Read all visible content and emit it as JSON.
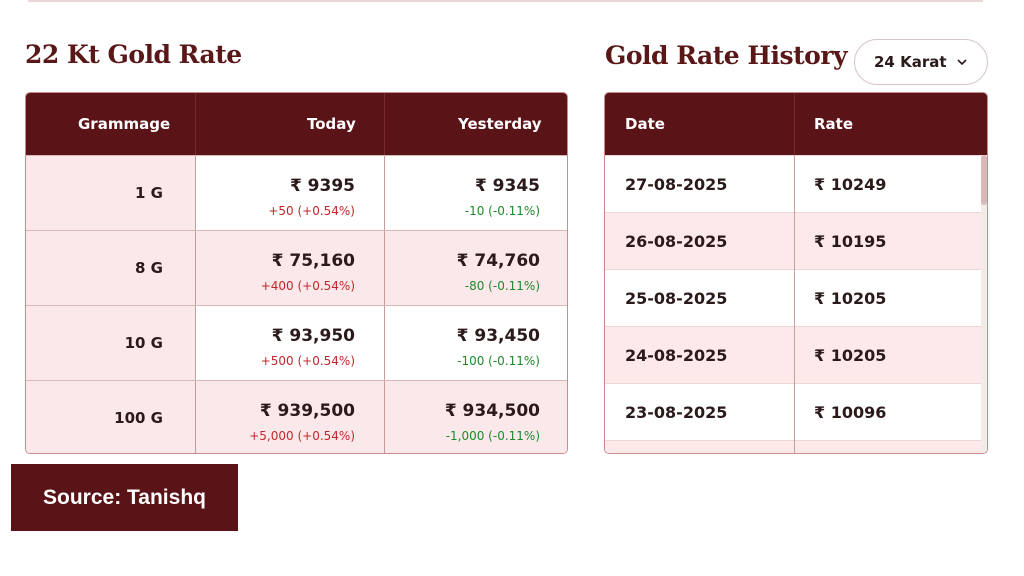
{
  "left_panel": {
    "title": "22 Kt Gold Rate",
    "columns": [
      "Grammage",
      "Today",
      "Yesterday"
    ],
    "rows": [
      {
        "gram": "1 G",
        "today_price": "₹ 9395",
        "today_change": "+50 (+0.54%)",
        "yesterday_price": "₹ 9345",
        "yesterday_change": "-10 (-0.11%)"
      },
      {
        "gram": "8 G",
        "today_price": "₹ 75,160",
        "today_change": "+400 (+0.54%)",
        "yesterday_price": "₹ 74,760",
        "yesterday_change": "-80 (-0.11%)"
      },
      {
        "gram": "10 G",
        "today_price": "₹ 93,950",
        "today_change": "+500 (+0.54%)",
        "yesterday_price": "₹ 93,450",
        "yesterday_change": "-100 (-0.11%)"
      },
      {
        "gram": "100 G",
        "today_price": "₹ 939,500",
        "today_change": "+5,000 (+0.54%)",
        "yesterday_price": "₹ 934,500",
        "yesterday_change": "-1,000 (-0.11%)"
      }
    ]
  },
  "right_panel": {
    "title": "Gold Rate History",
    "karat_select": {
      "value": "24 Karat",
      "icon": "chevron-down-icon"
    },
    "columns": [
      "Date",
      "Rate"
    ],
    "rows": [
      {
        "date": "27-08-2025",
        "rate": "₹ 10249"
      },
      {
        "date": "26-08-2025",
        "rate": "₹ 10195"
      },
      {
        "date": "25-08-2025",
        "rate": "₹ 10205"
      },
      {
        "date": "24-08-2025",
        "rate": "₹ 10205"
      },
      {
        "date": "23-08-2025",
        "rate": "₹ 10096"
      }
    ]
  },
  "source": "Source: Tanishq",
  "colors": {
    "header": "#5a1317",
    "row_pink": "#fbe8ea",
    "up": "#c0282b",
    "down": "#1d8a2c"
  }
}
